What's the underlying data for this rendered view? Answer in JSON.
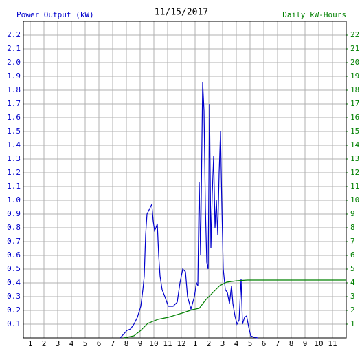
{
  "chart_data": {
    "type": "line",
    "title": "11/15/2017",
    "y_label": "Power Output (kW)",
    "y2_label": "Daily kW-Hours",
    "grid": true,
    "xlim": [
      0.5,
      24
    ],
    "xticks": [
      1,
      2,
      3,
      4,
      5,
      6,
      7,
      8,
      9,
      10,
      11,
      12,
      {
        "value": 13,
        "label": "1"
      },
      {
        "value": 14,
        "label": "2"
      },
      {
        "value": 15,
        "label": "3"
      },
      {
        "value": 16,
        "label": "4"
      },
      {
        "value": 17,
        "label": "5"
      },
      {
        "value": 18,
        "label": "6"
      },
      {
        "value": 19,
        "label": "7"
      },
      {
        "value": 20,
        "label": "8"
      },
      {
        "value": 21,
        "label": "9"
      },
      {
        "value": 22,
        "label": "10"
      },
      {
        "value": 23,
        "label": "11"
      }
    ],
    "ylim": [
      0,
      2.3
    ],
    "yticks": [
      0.1,
      0.2,
      0.3,
      0.4,
      0.5,
      0.6,
      0.7,
      0.8,
      0.9,
      {
        "value": 1.0,
        "label": "1.0"
      },
      1.1,
      1.2,
      1.3,
      1.4,
      1.5,
      1.6,
      1.7,
      1.8,
      1.9,
      {
        "value": 2.0,
        "label": "2.0"
      },
      2.1,
      2.2
    ],
    "y2lim": [
      0,
      23
    ],
    "y2ticks": [
      1,
      2,
      3,
      4,
      5,
      6,
      7,
      8,
      9,
      10,
      11,
      12,
      13,
      14,
      15,
      16,
      17,
      18,
      19,
      20,
      21,
      22
    ],
    "series": [
      {
        "color": "#0000cc",
        "x": [
          7.55,
          8.05,
          8.3,
          8.55,
          8.8,
          9.05,
          9.2,
          9.3,
          9.4,
          9.5,
          9.65,
          9.75,
          9.85,
          9.95,
          10.05,
          10.15,
          10.25,
          10.35,
          10.45,
          10.6,
          10.8,
          11.05,
          11.4,
          11.7,
          11.9,
          12.1,
          12.3,
          12.45,
          12.7,
          12.95,
          13.1,
          13.2,
          13.3,
          13.4,
          13.5,
          13.55,
          13.65,
          13.75,
          13.85,
          13.95,
          14.05,
          14.15,
          14.25,
          14.35,
          14.45,
          14.55,
          14.65,
          14.75,
          14.85,
          14.95,
          15.05,
          15.2,
          15.35,
          15.5,
          15.65,
          15.75,
          15.9,
          16.05,
          16.2,
          16.35,
          16.45,
          16.6,
          16.75,
          16.9,
          17.05,
          17.3,
          17.55
        ],
        "values": [
          0,
          0.055,
          0.065,
          0.1,
          0.15,
          0.23,
          0.35,
          0.45,
          0.75,
          0.9,
          0.93,
          0.95,
          0.97,
          0.85,
          0.78,
          0.8,
          0.83,
          0.6,
          0.45,
          0.35,
          0.3,
          0.23,
          0.23,
          0.26,
          0.4,
          0.5,
          0.48,
          0.3,
          0.21,
          0.3,
          0.4,
          0.38,
          1.13,
          0.6,
          1.45,
          1.86,
          1.65,
          0.95,
          0.55,
          0.5,
          1.7,
          0.65,
          1.05,
          1.32,
          0.8,
          1.0,
          0.75,
          1.2,
          1.5,
          0.95,
          0.5,
          0.35,
          0.33,
          0.25,
          0.38,
          0.25,
          0.16,
          0.1,
          0.13,
          0.43,
          0.1,
          0.15,
          0.16,
          0.08,
          0.015,
          0.005,
          0
        ]
      },
      {
        "color": "#008000",
        "axis": "y2",
        "x": [
          7.8,
          8.55,
          9.05,
          9.55,
          10.3,
          11.05,
          12.05,
          12.8,
          13.3,
          13.8,
          14.3,
          14.8,
          15.3,
          16.05,
          16.8,
          24
        ],
        "values": [
          0,
          0.15,
          0.55,
          1.05,
          1.35,
          1.5,
          1.8,
          2.05,
          2.15,
          2.8,
          3.3,
          3.8,
          4.05,
          4.15,
          4.2,
          4.2
        ]
      }
    ]
  }
}
